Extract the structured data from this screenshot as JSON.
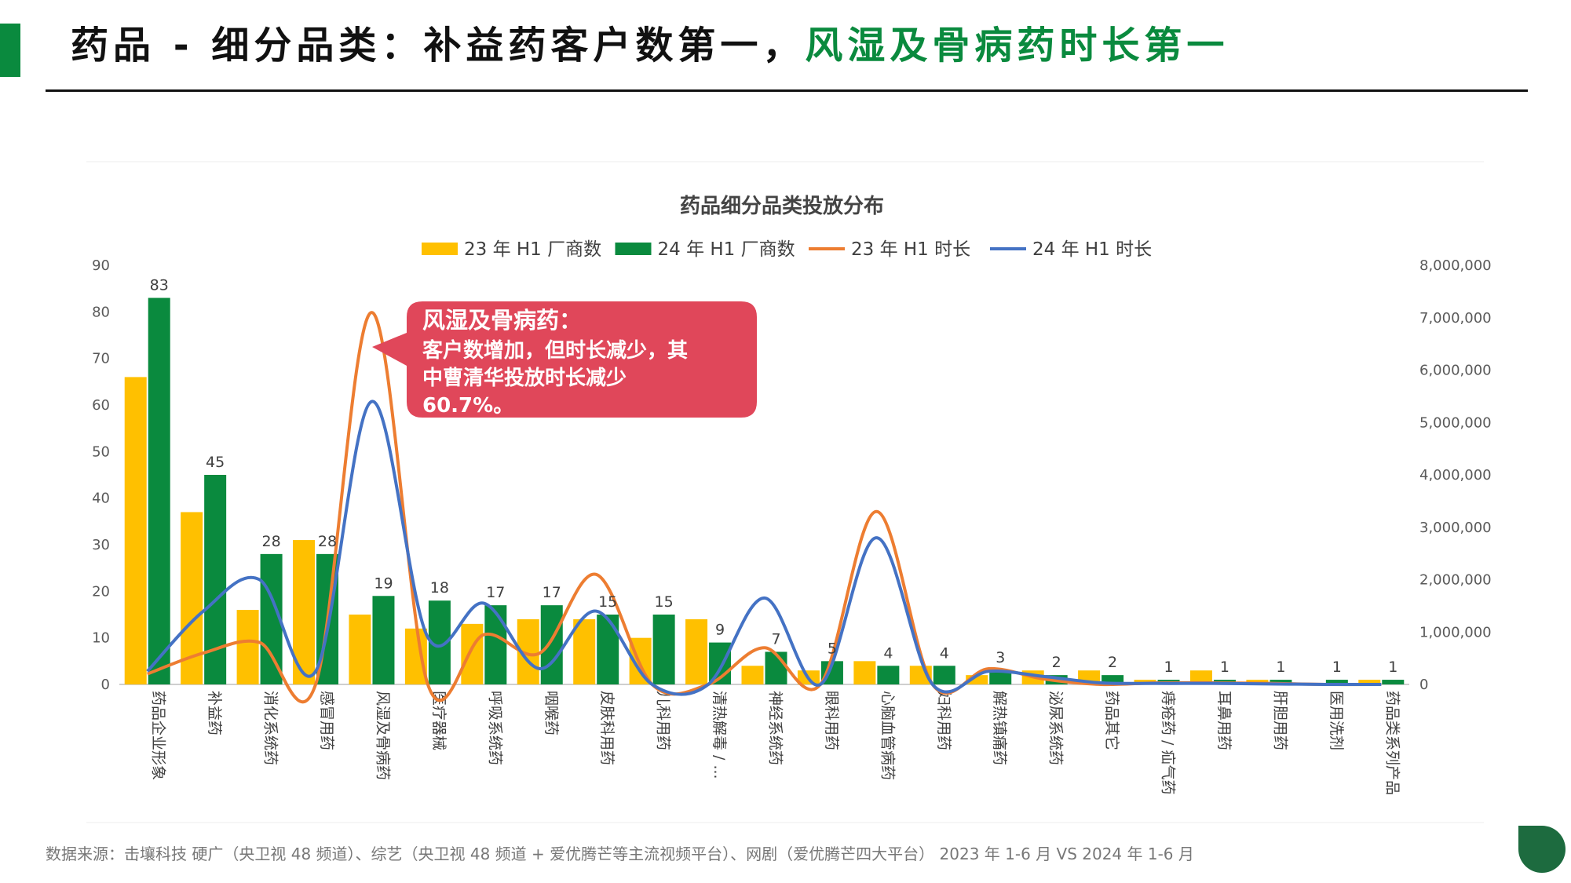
{
  "header": {
    "title_main": "药品 - 细分品类：补益药客户数第一，",
    "title_highlight": "风湿及骨病药时长第一"
  },
  "footer": {
    "source": "数据来源：击壤科技 硬广（央卫视 48 频道）、综艺（央卫视 48 频道 + 爱优腾芒等主流视频平台）、网剧（爱优腾芒四大平台） 2023 年 1-6 月 VS 2024 年 1-6 月"
  },
  "callout": {
    "line1": "风湿及骨病药：",
    "line2": "客户数增加，但时长减少，其",
    "line3": "中曹清华投放时长减少",
    "line4": "60.7%。",
    "color": "#e0475a"
  },
  "chart_data": {
    "type": "bar",
    "title": "药品细分品类投放分布",
    "categories": [
      "药品企业形象",
      "补益药",
      "消化系统药",
      "感冒用药",
      "风湿及骨病药",
      "医疗器械",
      "呼吸系统药",
      "咽喉药",
      "皮肤科用药",
      "儿科用药",
      "清热解毒 / ...",
      "神经系统药",
      "眼科用药",
      "心脑血管病药",
      "妇科用药",
      "解热镇痛药",
      "泌尿系统药",
      "药品其它",
      "痔疮药 / 疝气药",
      "耳鼻用药",
      "肝胆用药",
      "医用洗剂",
      "药品类系列产品"
    ],
    "series": [
      {
        "name": "23 年 H1 厂商数",
        "type": "bar",
        "axis": "left",
        "color": "#ffc000",
        "values": [
          66,
          37,
          16,
          31,
          15,
          12,
          13,
          14,
          14,
          10,
          14,
          4,
          3,
          5,
          4,
          2,
          3,
          3,
          1,
          3,
          1,
          0,
          1
        ]
      },
      {
        "name": "24 年 H1 厂商数",
        "type": "bar",
        "axis": "left",
        "color": "#0a8a3e",
        "values": [
          83,
          45,
          28,
          28,
          19,
          18,
          17,
          17,
          15,
          15,
          9,
          7,
          5,
          4,
          4,
          3,
          2,
          2,
          1,
          1,
          1,
          1,
          1
        ]
      },
      {
        "name": "23 年 H1 时长",
        "type": "line",
        "axis": "right",
        "color": "#ed7d31",
        "values": [
          200000,
          600000,
          800000,
          0,
          7100000,
          0,
          950000,
          600000,
          2100000,
          0,
          0,
          700000,
          0,
          3300000,
          0,
          300000,
          100000,
          0,
          30000,
          30000,
          20000,
          0,
          0
        ]
      },
      {
        "name": "24 年 H1 时长",
        "type": "line",
        "axis": "right",
        "color": "#4472c4",
        "values": [
          250000,
          1400000,
          2000000,
          250000,
          5400000,
          900000,
          1550000,
          300000,
          1400000,
          0,
          0,
          1650000,
          0,
          2800000,
          0,
          250000,
          150000,
          30000,
          20000,
          20000,
          10000,
          0,
          0
        ]
      }
    ],
    "bar_labels": [
      83,
      45,
      28,
      28,
      19,
      18,
      17,
      17,
      15,
      15,
      9,
      7,
      5,
      4,
      4,
      3,
      2,
      2,
      1,
      1,
      1,
      1,
      1
    ],
    "ylim_left": [
      0,
      90
    ],
    "yticks_left": [
      "0",
      "10",
      "20",
      "30",
      "40",
      "50",
      "60",
      "70",
      "80",
      "90"
    ],
    "ylim_right": [
      0,
      8000000
    ],
    "yticks_right": [
      "0",
      "1,000,000",
      "2,000,000",
      "3,000,000",
      "4,000,000",
      "5,000,000",
      "6,000,000",
      "7,000,000",
      "8,000,000"
    ],
    "legend_position": "top",
    "grid": false
  }
}
